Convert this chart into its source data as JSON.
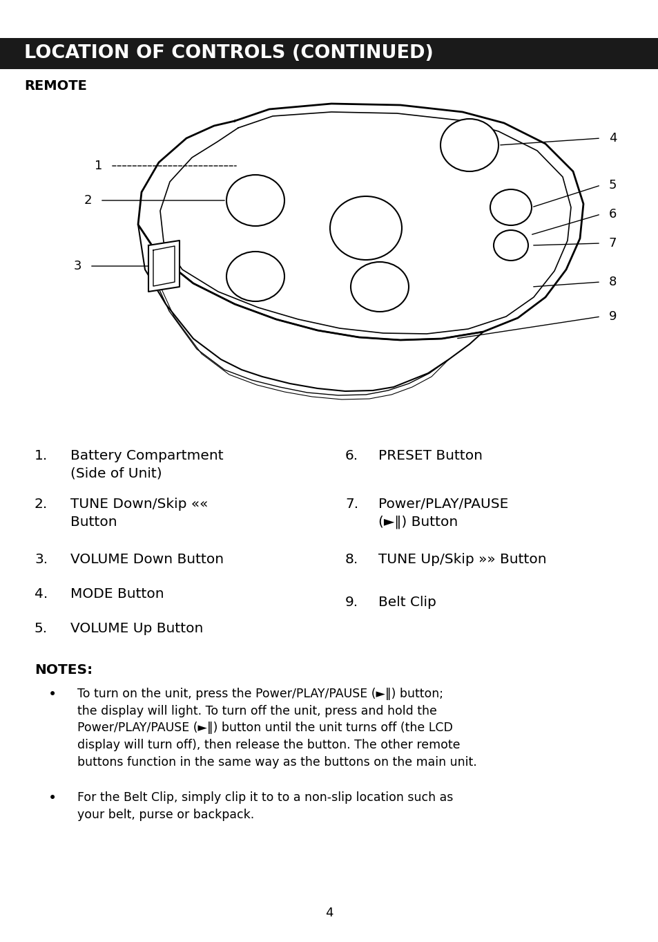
{
  "title": "LOCATION OF CONTROLS (CONTINUED)",
  "section_label": "REMOTE",
  "bg_color": "#ffffff",
  "title_bg": "#1a1a1a",
  "title_text_color": "#ffffff",
  "body_text_color": "#000000",
  "notes_title": "NOTES:",
  "notes": [
    "To turn on the unit, press the Power/PLAY/PAUSE (►‖) button;\nthe display will light. To turn off the unit, press and hold the\nPower/PLAY/PAUSE (►‖) button until the unit turns off (the LCD\ndisplay will turn off), then release the button. The other remote\nbuttons function in the same way as the buttons on the main unit.",
    "For the Belt Clip, simply clip it to to a non-slip location such as\nyour belt, purse or backpack."
  ],
  "page_number": "4"
}
